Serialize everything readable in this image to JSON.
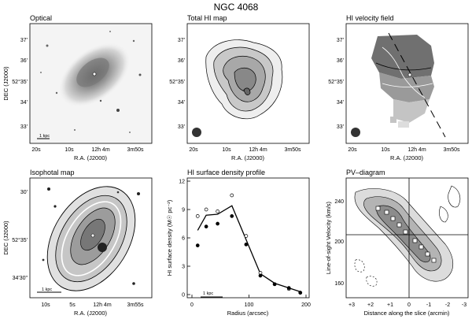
{
  "figure_title": "NGC 4068",
  "panels": {
    "optical": {
      "title": "Optical",
      "ylabel": "DEC (J2000)",
      "xlabel": "R.A. (J2000)",
      "yticks": [
        "37'",
        "36'",
        "52°35'",
        "34'",
        "33'"
      ],
      "xticks": [
        "20s",
        "10s",
        "12h 4m",
        "3m50s"
      ],
      "scalebar": "1 kpc"
    },
    "hi_map": {
      "title": "Total HI map",
      "xlabel": "R.A. (J2000)",
      "yticks": [
        "37'",
        "36'",
        "52°35'",
        "34'",
        "33'"
      ],
      "xticks": [
        "20s",
        "10s",
        "12h 4m",
        "3m50s"
      ]
    },
    "velocity": {
      "title": "HI velocity field",
      "xlabel": "R.A. (J2000)",
      "yticks": [
        "37'",
        "36'",
        "52°35'",
        "34'",
        "33'"
      ],
      "xticks": [
        "20s",
        "10s",
        "12h 4m",
        "3m50s"
      ]
    },
    "isophotal": {
      "title": "Isophotal map",
      "ylabel": "DEC (J2000)",
      "xlabel": "R.A. (J2000)",
      "yticks": [
        "30'",
        "52°35'",
        "34'30\""
      ],
      "xticks": [
        "10s",
        "5s",
        "12h 4m",
        "3m55s"
      ],
      "scalebar": "1 kpc"
    },
    "profile": {
      "title": "HI surface density profile",
      "ylabel": "HI surface density (M☉ pc⁻²)",
      "xlabel": "Radius (arcsec)",
      "scalebar": "1 kpc"
    },
    "pv": {
      "title": "PV–diagram",
      "ylabel": "Line-of-sight Velocity (km/s)",
      "xlabel": "Distance along the slice (arcmin)",
      "yticks": [
        "240",
        "200",
        "160"
      ],
      "xticks": [
        "+3",
        "+2",
        "+1",
        "0",
        "-1",
        "-2",
        "-3"
      ]
    }
  },
  "chart_data": {
    "type": "line",
    "title": "HI surface density profile",
    "xlabel": "Radius (arcsec)",
    "ylabel": "HI surface density (M☉ pc⁻²)",
    "xlim": [
      0,
      200
    ],
    "ylim": [
      0,
      12
    ],
    "xticks": [
      0,
      100,
      200
    ],
    "yticks": [
      0,
      3,
      6,
      9,
      12
    ],
    "series": [
      {
        "marker": "line",
        "x": [
          10,
          25,
          45,
          70,
          95,
          120,
          145,
          170,
          190
        ],
        "y": [
          6.8,
          8.4,
          8.5,
          9.4,
          5.8,
          2.2,
          1.2,
          0.7,
          0.3
        ]
      },
      {
        "marker": "open-circle",
        "x": [
          10,
          25,
          45,
          70,
          95,
          120,
          145,
          170,
          190
        ],
        "y": [
          8.3,
          9.0,
          8.8,
          10.5,
          6.2,
          2.3,
          1.1,
          0.6,
          0.2
        ]
      },
      {
        "marker": "filled-circle",
        "x": [
          10,
          25,
          45,
          70,
          95,
          120,
          145,
          170,
          190
        ],
        "y": [
          5.2,
          7.2,
          7.5,
          8.3,
          5.3,
          2.0,
          1.1,
          0.7,
          0.2
        ]
      }
    ]
  }
}
